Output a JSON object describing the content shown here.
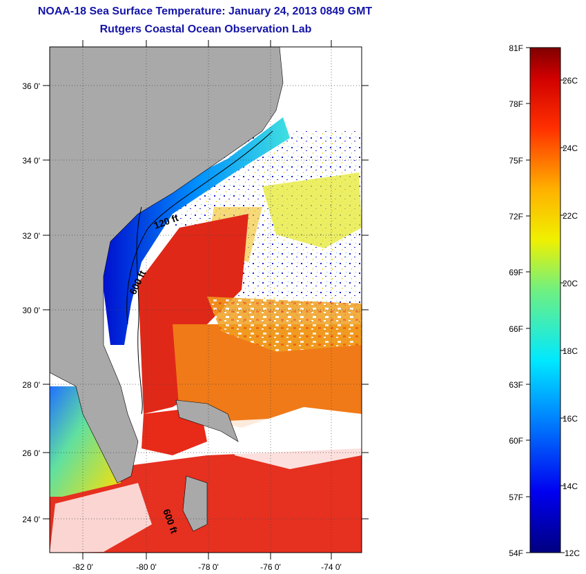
{
  "title": "NOAA-18 Sea Surface Temperature:  January 24, 2013 0849 GMT",
  "subtitle": "Rutgers Coastal Ocean Observation Lab",
  "map": {
    "lat_ticks": [
      "36 0'",
      "34 0'",
      "32 0'",
      "30 0'",
      "28 0'",
      "26 0'",
      "24 0'"
    ],
    "lon_ticks": [
      "-82 0'",
      "-80 0'",
      "-78 0'",
      "-76 0'",
      "-74 0'"
    ],
    "contour_labels": [
      "120 ft",
      "600 ft",
      "600 ft"
    ],
    "colors": {
      "land": "#a9a9a9",
      "cloud": "#ffffff",
      "warm": "#e32412",
      "cold": "#1010d0"
    }
  },
  "colorbar": {
    "fahrenheit": [
      "81F",
      "78F",
      "75F",
      "72F",
      "69F",
      "66F",
      "63F",
      "60F",
      "57F",
      "54F"
    ],
    "celsius": [
      "26C",
      "24C",
      "22C",
      "20C",
      "18C",
      "16C",
      "14C",
      "12C"
    ]
  }
}
